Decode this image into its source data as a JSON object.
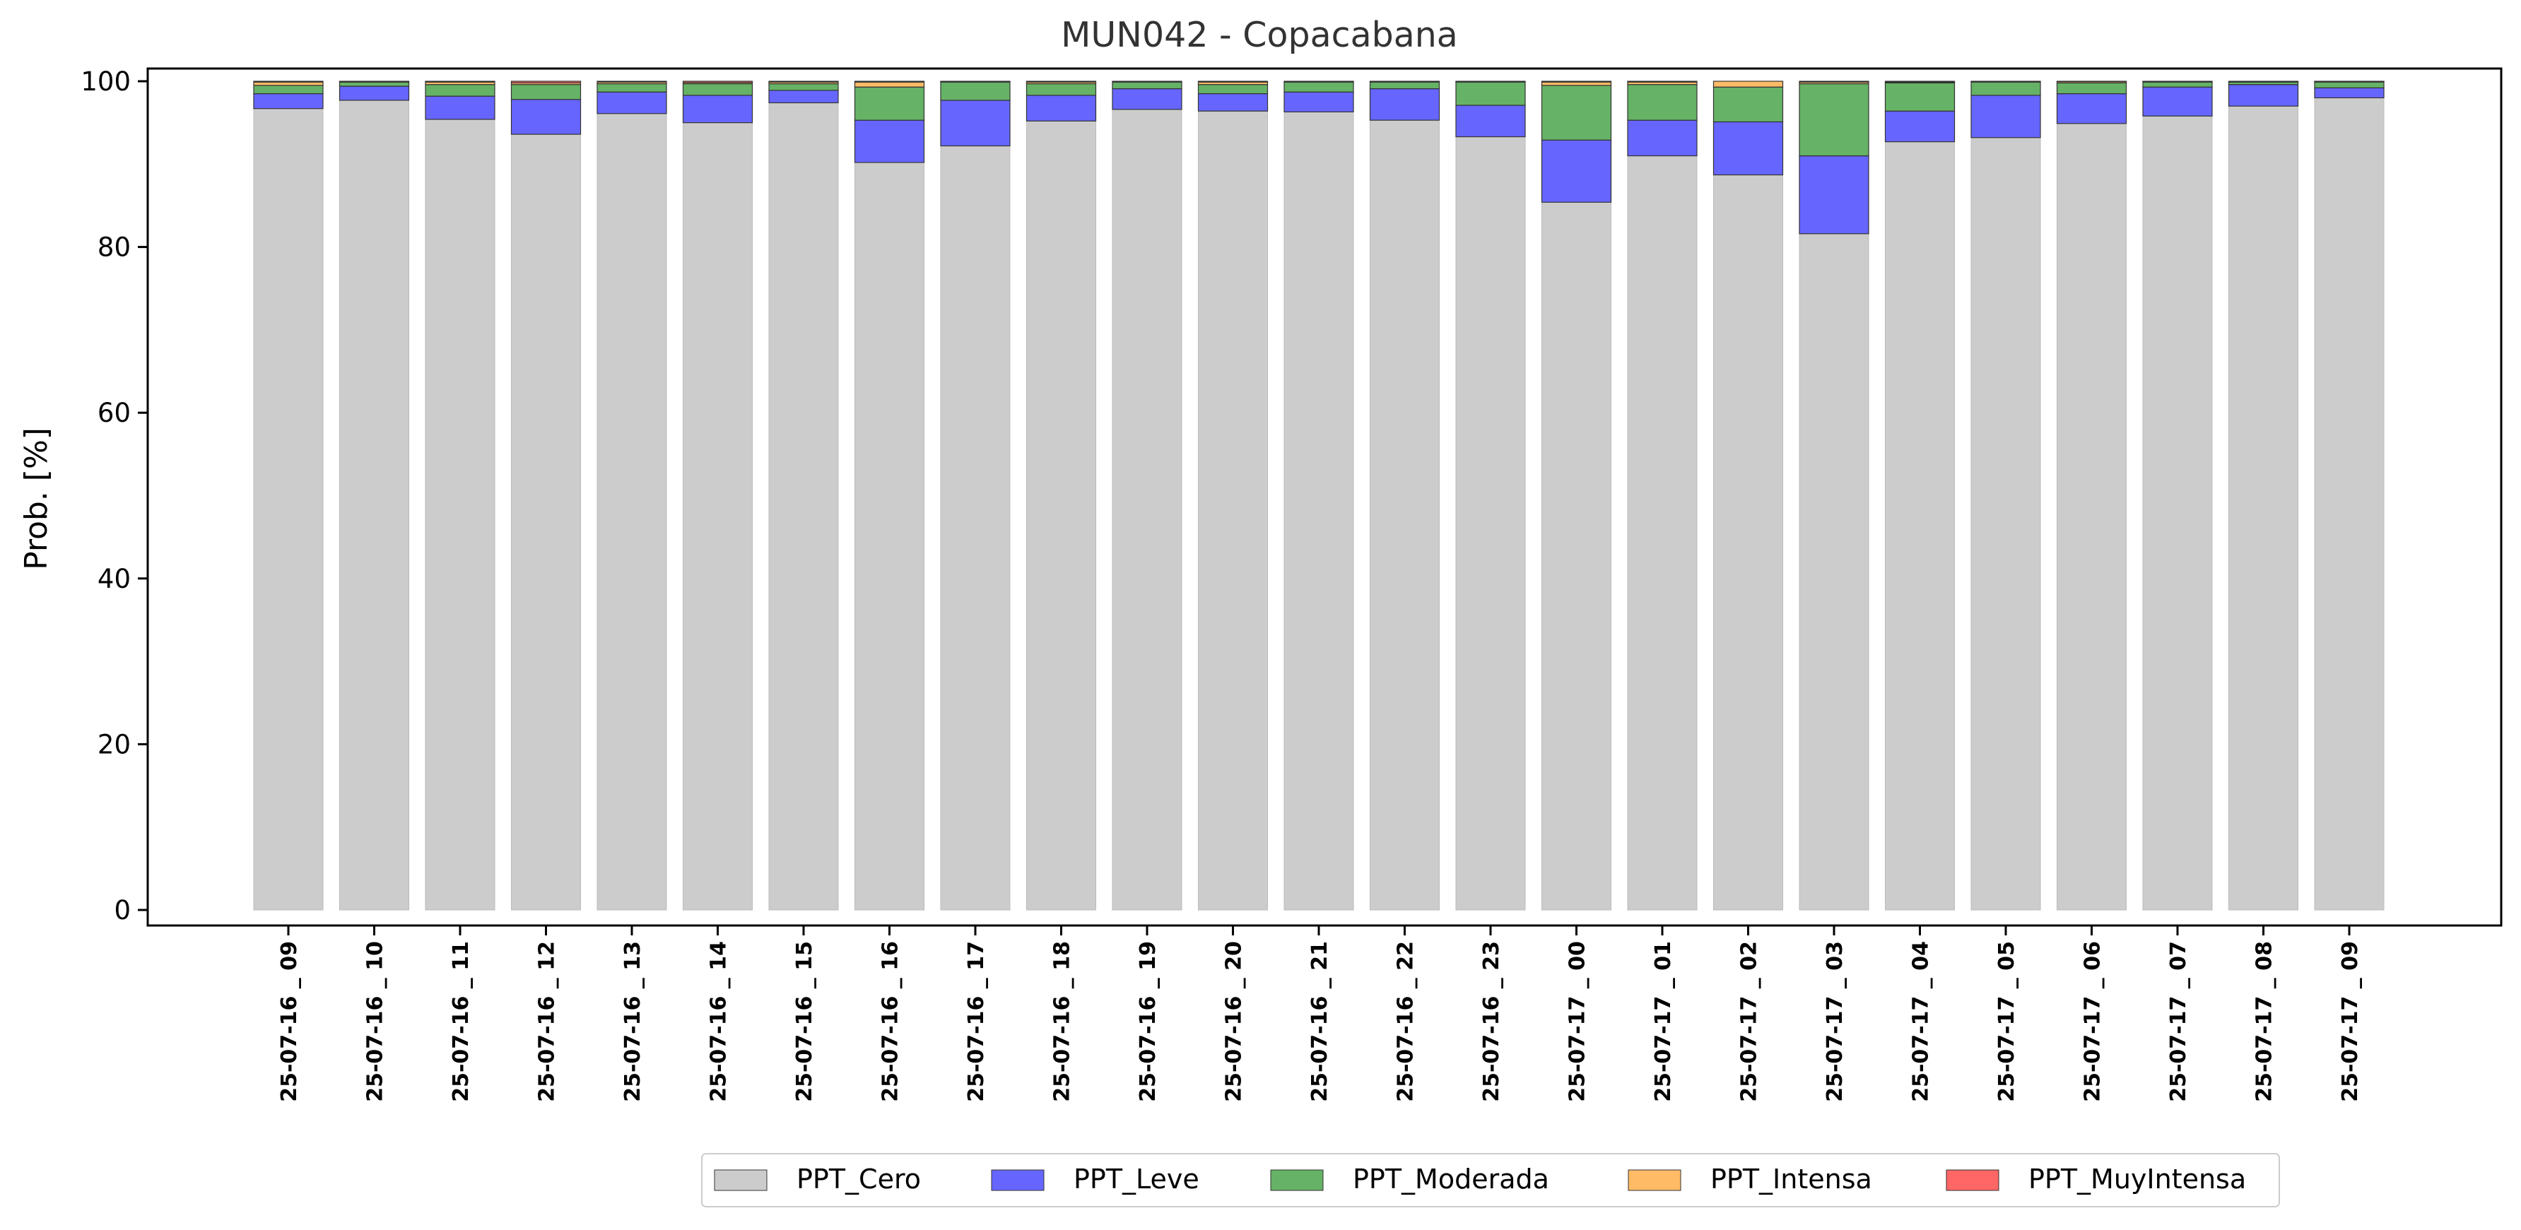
{
  "chart_data": {
    "type": "bar",
    "stacked": true,
    "title": "MUN042 - Copacabana",
    "ylabel": "Prob. [%]",
    "xlabel": "",
    "ylim": [
      0,
      102
    ],
    "yticks": [
      0,
      20,
      40,
      60,
      80,
      100
    ],
    "grid": false,
    "legend_position": "bottom",
    "categories": [
      "25-07-16 _ 09",
      "25-07-16 _ 10",
      "25-07-16 _ 11",
      "25-07-16 _ 12",
      "25-07-16 _ 13",
      "25-07-16 _ 14",
      "25-07-16 _ 15",
      "25-07-16 _ 16",
      "25-07-16 _ 17",
      "25-07-16 _ 18",
      "25-07-16 _ 19",
      "25-07-16 _ 20",
      "25-07-16 _ 21",
      "25-07-16 _ 22",
      "25-07-16 _ 23",
      "25-07-17 _ 00",
      "25-07-17 _ 01",
      "25-07-17 _ 02",
      "25-07-17 _ 03",
      "25-07-17 _ 04",
      "25-07-17 _ 05",
      "25-07-17 _ 06",
      "25-07-17 _ 07",
      "25-07-17 _ 08",
      "25-07-17 _ 09"
    ],
    "series": [
      {
        "name": "PPT_Cero",
        "color": "#cccccc",
        "values": [
          96.7,
          97.7,
          95.4,
          93.6,
          96.1,
          95.0,
          97.4,
          90.2,
          92.2,
          95.2,
          96.6,
          96.4,
          96.3,
          95.3,
          93.3,
          85.4,
          91.0,
          88.7,
          81.6,
          92.7,
          93.2,
          94.9,
          95.8,
          97.0,
          98.0
        ]
      },
      {
        "name": "PPT_Leve",
        "color": "#6666ff",
        "values": [
          1.8,
          1.7,
          2.8,
          4.2,
          2.6,
          3.3,
          1.5,
          5.1,
          5.5,
          3.1,
          2.5,
          2.1,
          2.4,
          3.8,
          3.8,
          7.5,
          4.3,
          6.4,
          9.4,
          3.7,
          5.1,
          3.6,
          3.5,
          2.6,
          1.2
        ]
      },
      {
        "name": "PPT_Moderada",
        "color": "#66b266",
        "values": [
          1.0,
          0.5,
          1.4,
          1.8,
          1.0,
          1.4,
          0.8,
          4.0,
          2.2,
          1.4,
          0.8,
          1.1,
          1.2,
          0.8,
          2.8,
          6.6,
          4.3,
          4.2,
          8.7,
          3.4,
          1.6,
          1.3,
          0.6,
          0.3,
          0.7
        ]
      },
      {
        "name": "PPT_Intensa",
        "color": "#ffbb66",
        "values": [
          0.4,
          0.05,
          0.3,
          0.2,
          0.2,
          0.15,
          0.2,
          0.6,
          0.05,
          0.2,
          0.05,
          0.3,
          0.05,
          0.05,
          0.05,
          0.4,
          0.3,
          0.7,
          0.2,
          0.1,
          0.05,
          0.15,
          0.05,
          0.05,
          0.05
        ]
      },
      {
        "name": "PPT_MuyIntensa",
        "color": "#ff6666",
        "values": [
          0.1,
          0.05,
          0.1,
          0.2,
          0.1,
          0.15,
          0.1,
          0.1,
          0.05,
          0.1,
          0.05,
          0.1,
          0.05,
          0.05,
          0.05,
          0.1,
          0.1,
          0.0,
          0.1,
          0.1,
          0.05,
          0.05,
          0.05,
          0.05,
          0.05
        ]
      }
    ]
  }
}
